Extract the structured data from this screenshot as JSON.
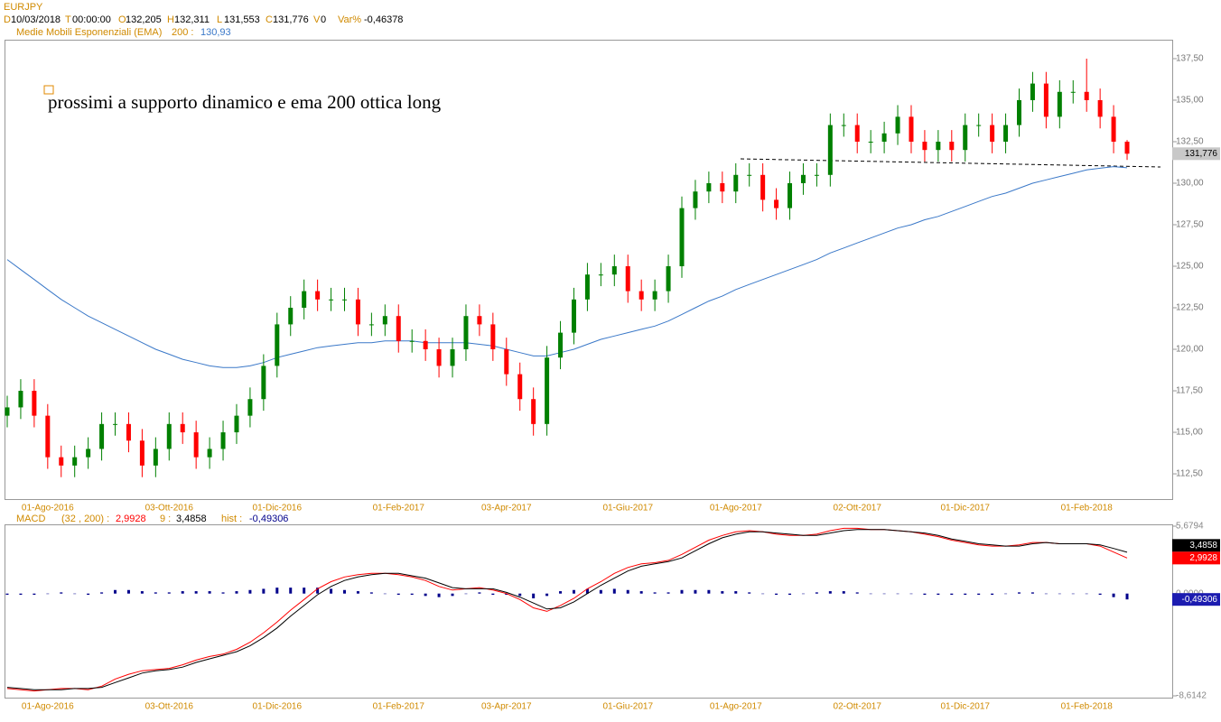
{
  "header": {
    "symbol": "EURJPY",
    "fields": [
      {
        "label": "D",
        "value": "10/03/2018"
      },
      {
        "label": "T",
        "value": "00:00:00"
      },
      {
        "label": "O",
        "value": "132,205"
      },
      {
        "label": "H",
        "value": "132,311"
      },
      {
        "label": "L",
        "value": "131,553"
      },
      {
        "label": "C",
        "value": "131,776"
      },
      {
        "label": "V",
        "value": "0"
      },
      {
        "label": "Var%",
        "value": "-0,46378"
      }
    ]
  },
  "chart_data": [
    {
      "type": "candlestick",
      "annotation": "prossimi a supporto dinamico e ema 200 ottica long",
      "up_color": "#008000",
      "down_color": "#ff0000",
      "categories": [
        null,
        null,
        null,
        "01-Ago-2016",
        null,
        null,
        null,
        null,
        null,
        null,
        null,
        null,
        "03-Ott-2016",
        null,
        null,
        null,
        null,
        null,
        null,
        null,
        "01-Dic-2016",
        null,
        null,
        null,
        null,
        null,
        null,
        null,
        null,
        "01-Feb-2017",
        null,
        null,
        null,
        null,
        null,
        null,
        null,
        "03-Apr-2017",
        null,
        null,
        null,
        null,
        null,
        null,
        null,
        null,
        "01-Giu-2017",
        null,
        null,
        null,
        null,
        null,
        null,
        null,
        "01-Ago-2017",
        null,
        null,
        null,
        null,
        null,
        null,
        null,
        null,
        "02-Ott-2017",
        null,
        null,
        null,
        null,
        null,
        null,
        null,
        "01-Dic-2017",
        null,
        null,
        null,
        null,
        null,
        null,
        null,
        null,
        "01-Feb-2018",
        null,
        null,
        null
      ],
      "open": [
        116,
        116.5,
        117.5,
        116,
        113.5,
        113,
        113.5,
        114,
        115.5,
        115.5,
        114.5,
        113,
        114,
        115.5,
        115,
        113.5,
        114,
        115,
        116,
        117,
        119,
        121.5,
        122.5,
        123.5,
        123,
        123,
        123,
        121.5,
        121.5,
        122,
        120.5,
        120.5,
        120,
        119,
        120,
        122,
        121.5,
        120,
        118.5,
        117,
        115.5,
        119.5,
        121,
        123,
        124.5,
        124.5,
        125,
        123.5,
        123,
        123.5,
        125,
        128.5,
        129.5,
        130,
        129.5,
        130.5,
        130.5,
        129,
        128.5,
        130,
        130.5,
        130.5,
        133.5,
        133.5,
        132.5,
        132.5,
        133,
        134,
        132.5,
        132,
        132.5,
        132,
        133.5,
        133.5,
        132.5,
        133.5,
        135,
        136,
        134,
        135.5,
        135.5,
        135,
        134,
        132.5
      ],
      "high": [
        117.2,
        118.2,
        118.2,
        116.7,
        114.2,
        114.2,
        114.7,
        116.2,
        116.2,
        116.2,
        115.2,
        114.7,
        116.2,
        116.2,
        115.7,
        114.7,
        115.7,
        116.7,
        117.7,
        119.7,
        122.2,
        123.2,
        124.2,
        124.2,
        123.7,
        123.7,
        123.7,
        122.2,
        122.7,
        122.7,
        121.2,
        121.2,
        120.7,
        120.7,
        122.7,
        122.7,
        122.2,
        120.7,
        119.2,
        117.7,
        120.2,
        121.7,
        123.7,
        125.2,
        125.2,
        125.7,
        125.7,
        124.2,
        124.2,
        125.7,
        129.2,
        130.2,
        130.7,
        130.7,
        131.2,
        131.2,
        131.2,
        129.7,
        130.7,
        131.2,
        131.2,
        134.2,
        134.2,
        134.2,
        133.2,
        133.7,
        134.7,
        134.7,
        133.2,
        133.2,
        133.2,
        134.2,
        134.2,
        134.2,
        134.2,
        135.7,
        136.7,
        136.7,
        136.2,
        136.2,
        137.5,
        135.7,
        134.7,
        132.6
      ],
      "low": [
        115.3,
        115.8,
        115.3,
        112.8,
        112.3,
        112.3,
        112.8,
        113.3,
        114.8,
        113.8,
        112.3,
        112.3,
        113.3,
        114.3,
        112.8,
        112.8,
        113.3,
        114.3,
        115.3,
        116.3,
        118.3,
        120.8,
        121.8,
        122.3,
        122.3,
        122.3,
        120.8,
        120.8,
        120.8,
        119.8,
        119.8,
        119.3,
        118.3,
        118.3,
        119.3,
        120.8,
        119.3,
        117.8,
        116.3,
        114.8,
        114.8,
        118.8,
        120.3,
        122.3,
        123.8,
        123.8,
        122.8,
        122.3,
        122.3,
        122.8,
        124.3,
        127.8,
        128.8,
        128.8,
        128.8,
        129.8,
        128.3,
        127.8,
        127.8,
        129.3,
        129.8,
        129.8,
        132.8,
        131.8,
        131.8,
        131.8,
        132.3,
        131.8,
        131.3,
        131.3,
        131.3,
        131.3,
        132.8,
        131.8,
        131.8,
        132.8,
        134.3,
        133.3,
        133.3,
        134.8,
        134.3,
        133.3,
        131.8,
        131.4
      ],
      "close": [
        116.5,
        117.5,
        116,
        113.5,
        113,
        113.5,
        114,
        115.5,
        115.5,
        114.5,
        113,
        114,
        115.5,
        115,
        113.5,
        114,
        115,
        116,
        117,
        119,
        121.5,
        122.5,
        123.5,
        123,
        123,
        123,
        121.5,
        121.5,
        122,
        120.5,
        120.5,
        120,
        119,
        120,
        122,
        121.5,
        120,
        118.5,
        117,
        115.5,
        119.5,
        121,
        123,
        124.5,
        124.5,
        125,
        123.5,
        123,
        123.5,
        125,
        128.5,
        129.5,
        130,
        129.5,
        130.5,
        130.5,
        129,
        128.5,
        130,
        130.5,
        130.5,
        133.5,
        133.5,
        132.5,
        132.5,
        133,
        134,
        132.5,
        132,
        132.5,
        132,
        133.5,
        133.5,
        132.5,
        133.5,
        135,
        136,
        134,
        135.5,
        135.5,
        135,
        134,
        132.5,
        131.776
      ],
      "series": [
        {
          "name": "Medie Mobili Esponenziali (EMA)",
          "period_label": "200 :",
          "last_label": "130,93",
          "color": "#3a78c8",
          "values": [
            125.4,
            124.8,
            124.2,
            123.6,
            123.0,
            122.5,
            122.0,
            121.6,
            121.2,
            120.8,
            120.4,
            120.0,
            119.7,
            119.4,
            119.2,
            119.0,
            118.9,
            118.9,
            119.0,
            119.2,
            119.5,
            119.7,
            119.9,
            120.1,
            120.2,
            120.3,
            120.4,
            120.4,
            120.5,
            120.5,
            120.5,
            120.4,
            120.4,
            120.4,
            120.4,
            120.3,
            120.2,
            120.0,
            119.8,
            119.6,
            119.6,
            119.8,
            120.0,
            120.3,
            120.6,
            120.8,
            121.0,
            121.2,
            121.4,
            121.7,
            122.1,
            122.5,
            122.9,
            123.2,
            123.6,
            123.9,
            124.2,
            124.5,
            124.8,
            125.1,
            125.4,
            125.8,
            126.1,
            126.4,
            126.7,
            127.0,
            127.3,
            127.5,
            127.8,
            128.0,
            128.3,
            128.6,
            128.9,
            129.2,
            129.4,
            129.7,
            130.0,
            130.2,
            130.4,
            130.6,
            130.8,
            130.9,
            131.0,
            130.93
          ]
        }
      ],
      "ylim": [
        110.98,
        138.64
      ],
      "yticks": [
        {
          "value": 112.5,
          "label": "112,50"
        },
        {
          "value": 115,
          "label": "115,00"
        },
        {
          "value": 117.5,
          "label": "117,50"
        },
        {
          "value": 120,
          "label": "120,00"
        },
        {
          "value": 122.5,
          "label": "122,50"
        },
        {
          "value": 125,
          "label": "125,00"
        },
        {
          "value": 127.5,
          "label": "127,50"
        },
        {
          "value": 130,
          "label": "130,00"
        },
        {
          "value": 132.5,
          "label": "132,50"
        },
        {
          "value": 135,
          "label": "135,00"
        },
        {
          "value": 137.5,
          "label": "137,50"
        }
      ]
    },
    {
      "type": "macd",
      "title": "MACD",
      "categories": [
        null,
        null,
        null,
        "01-Ago-2016",
        null,
        null,
        null,
        null,
        null,
        null,
        null,
        null,
        "03-Ott-2016",
        null,
        null,
        null,
        null,
        null,
        null,
        null,
        "01-Dic-2016",
        null,
        null,
        null,
        null,
        null,
        null,
        null,
        null,
        "01-Feb-2017",
        null,
        null,
        null,
        null,
        null,
        null,
        null,
        "03-Apr-2017",
        null,
        null,
        null,
        null,
        null,
        null,
        null,
        null,
        "01-Giu-2017",
        null,
        null,
        null,
        null,
        null,
        null,
        null,
        "01-Ago-2017",
        null,
        null,
        null,
        null,
        null,
        null,
        null,
        null,
        "02-Ott-2017",
        null,
        null,
        null,
        null,
        null,
        null,
        null,
        "01-Dic-2017",
        null,
        null,
        null,
        null,
        null,
        null,
        null,
        null,
        "01-Feb-2018",
        null,
        null,
        null
      ],
      "series": [
        {
          "name": "(32 , 200) :",
          "last_label": "2,9928",
          "color": "#ff0000",
          "values": [
            -8.0,
            -8.1,
            -8.2,
            -8.1,
            -8.0,
            -8.0,
            -8.1,
            -7.8,
            -7.2,
            -6.8,
            -6.5,
            -6.4,
            -6.3,
            -6.0,
            -5.6,
            -5.3,
            -5.1,
            -4.7,
            -4.1,
            -3.3,
            -2.4,
            -1.4,
            -0.5,
            0.4,
            1.0,
            1.4,
            1.6,
            1.7,
            1.7,
            1.6,
            1.4,
            1.1,
            0.6,
            0.3,
            0.4,
            0.5,
            0.3,
            0.0,
            -0.5,
            -1.2,
            -1.5,
            -1.0,
            -0.4,
            0.4,
            1.0,
            1.7,
            2.2,
            2.5,
            2.6,
            2.8,
            3.3,
            3.9,
            4.5,
            4.9,
            5.2,
            5.3,
            5.2,
            5.0,
            4.9,
            4.9,
            5.0,
            5.3,
            5.5,
            5.5,
            5.4,
            5.4,
            5.3,
            5.2,
            5.0,
            4.8,
            4.5,
            4.3,
            4.1,
            4.0,
            4.0,
            4.1,
            4.3,
            4.3,
            4.2,
            4.2,
            4.2,
            4.0,
            3.5,
            2.9928
          ]
        },
        {
          "name": "9 :",
          "last_label": "3,4858",
          "color": "#000000",
          "values": [
            -7.9,
            -8.0,
            -8.1,
            -8.1,
            -8.1,
            -8.0,
            -8.0,
            -7.9,
            -7.5,
            -7.1,
            -6.7,
            -6.5,
            -6.4,
            -6.2,
            -5.8,
            -5.5,
            -5.2,
            -4.9,
            -4.4,
            -3.7,
            -2.9,
            -1.9,
            -1.0,
            -0.1,
            0.6,
            1.1,
            1.4,
            1.6,
            1.7,
            1.7,
            1.5,
            1.3,
            0.9,
            0.5,
            0.4,
            0.4,
            0.4,
            0.1,
            -0.3,
            -0.8,
            -1.3,
            -1.2,
            -0.7,
            0.0,
            0.7,
            1.3,
            1.9,
            2.3,
            2.5,
            2.7,
            3.0,
            3.6,
            4.2,
            4.7,
            5.0,
            5.2,
            5.2,
            5.1,
            5.0,
            4.9,
            4.9,
            5.1,
            5.3,
            5.4,
            5.4,
            5.4,
            5.3,
            5.2,
            5.1,
            4.9,
            4.6,
            4.4,
            4.2,
            4.1,
            4.0,
            4.0,
            4.2,
            4.3,
            4.2,
            4.2,
            4.2,
            4.1,
            3.8,
            3.4858
          ]
        },
        {
          "name": "hist :",
          "last_label": "-0,49306",
          "color": "#00008b",
          "values": [
            -0.1,
            -0.1,
            -0.1,
            0.0,
            0.1,
            0.0,
            -0.1,
            0.1,
            0.3,
            0.3,
            0.2,
            0.1,
            0.1,
            0.2,
            0.2,
            0.2,
            0.1,
            0.2,
            0.3,
            0.4,
            0.5,
            0.5,
            0.5,
            0.5,
            0.4,
            0.3,
            0.2,
            0.1,
            0.0,
            -0.1,
            -0.1,
            -0.2,
            -0.3,
            -0.2,
            0.0,
            0.1,
            -0.1,
            -0.1,
            -0.2,
            -0.4,
            -0.2,
            0.2,
            0.3,
            0.4,
            0.3,
            0.4,
            0.3,
            0.2,
            0.1,
            0.1,
            0.3,
            0.3,
            0.3,
            0.2,
            0.2,
            0.1,
            0.0,
            -0.1,
            -0.1,
            0.0,
            0.1,
            0.2,
            0.2,
            0.1,
            0.0,
            0.0,
            0.0,
            0.0,
            -0.1,
            -0.1,
            -0.1,
            -0.1,
            -0.1,
            -0.1,
            0.0,
            0.1,
            0.1,
            0.0,
            0.0,
            0.0,
            0.0,
            -0.1,
            -0.3,
            -0.49306
          ]
        }
      ],
      "ylim": [
        -8.6142,
        5.6794
      ],
      "yticks": [
        {
          "value": -8.6142,
          "label": "-8,6142"
        },
        {
          "value": 0,
          "label": "0,0000"
        },
        {
          "value": 5.6794,
          "label": "5,6794"
        }
      ]
    }
  ]
}
